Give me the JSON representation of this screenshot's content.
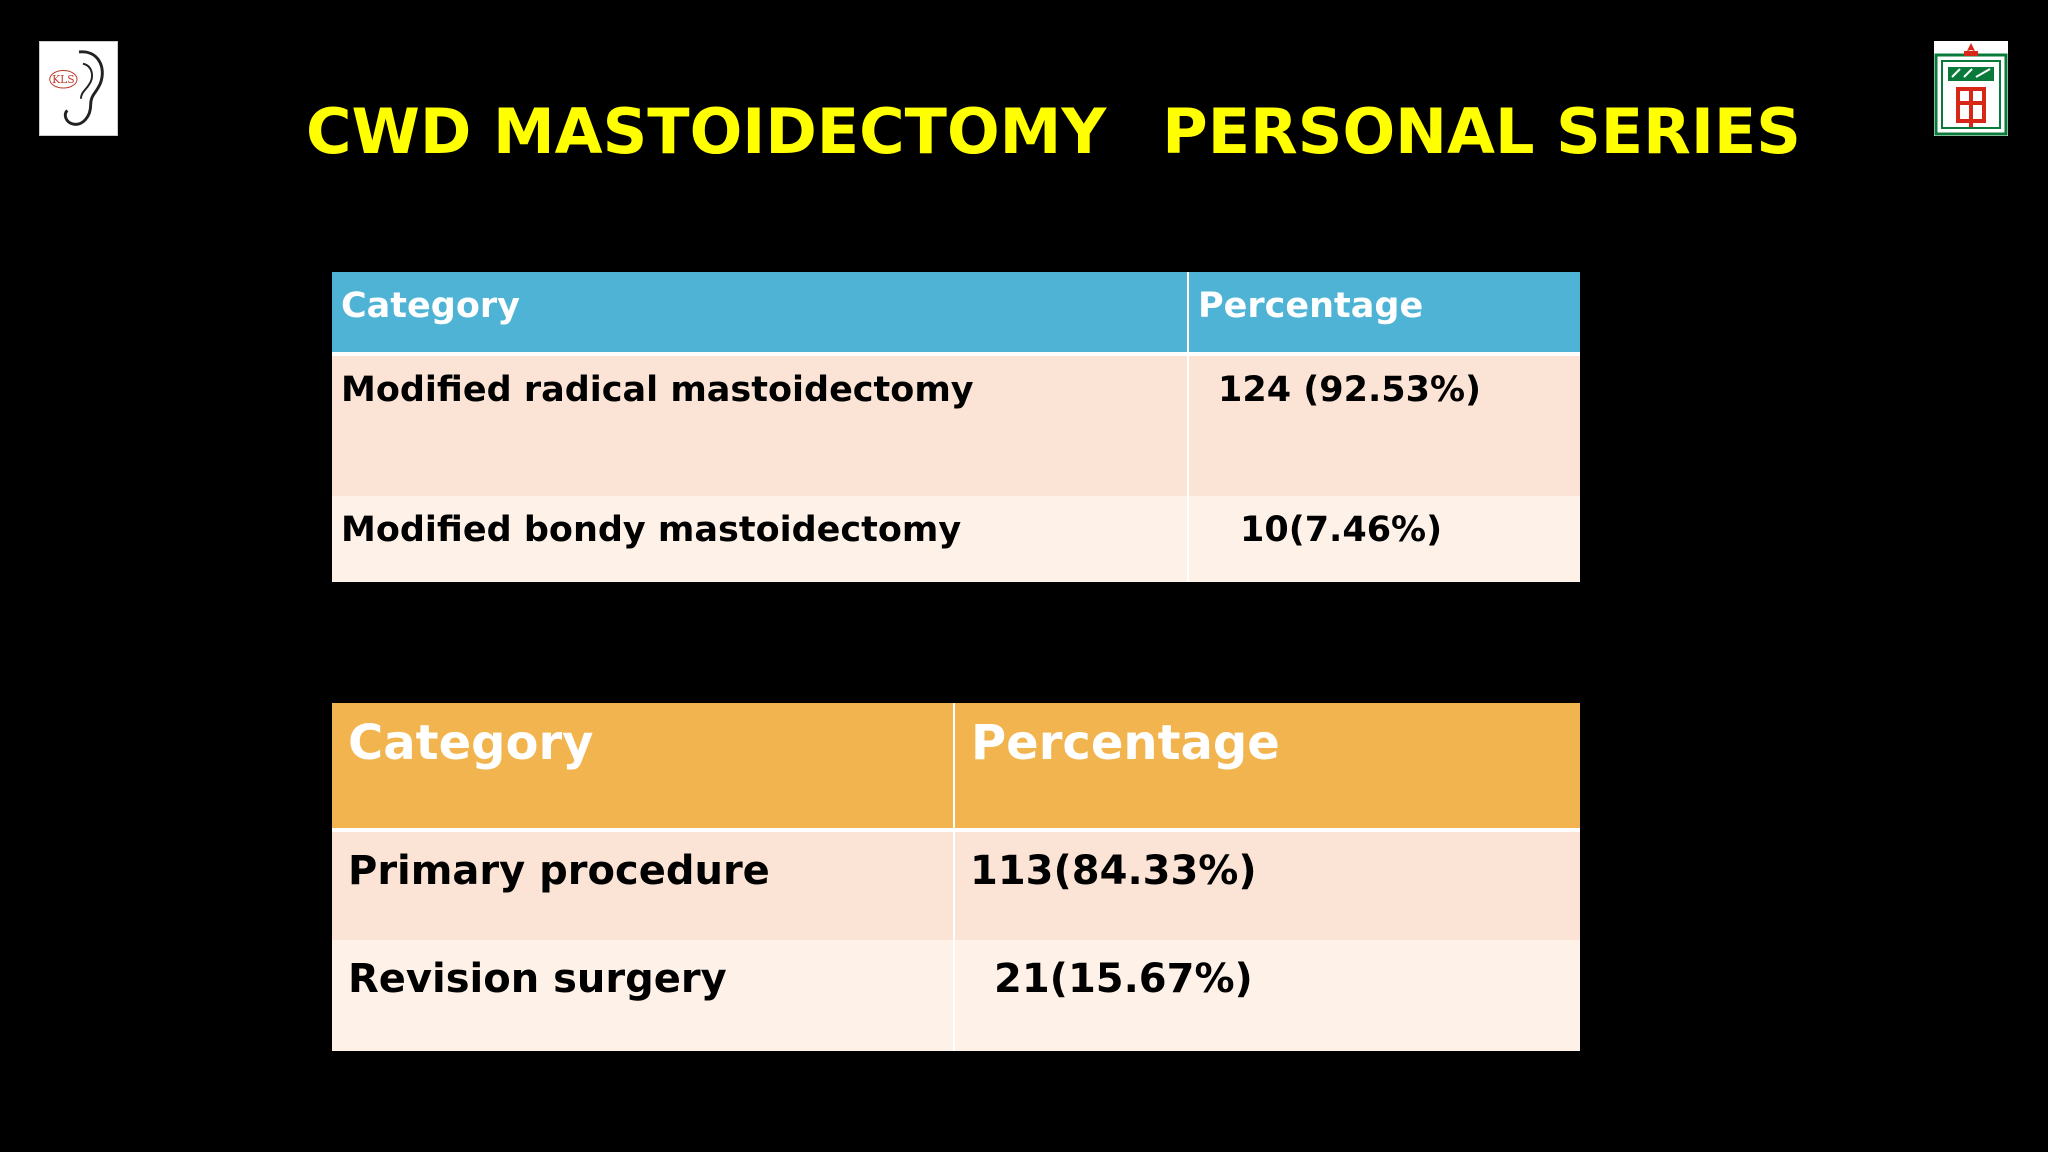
{
  "logos": {
    "left": {
      "text": "KLS",
      "icon": "ear-logo-icon"
    },
    "right": {
      "icon": "hospital-crest-icon"
    }
  },
  "title": {
    "part1": "CWD MASTOIDECTOMY",
    "part2": "PERSONAL SERIES"
  },
  "table1": {
    "headers": [
      "Category",
      "Percentage"
    ],
    "rows": [
      {
        "category": "Modified radical mastoidectomy",
        "value": "124 (92.53%)"
      },
      {
        "category": "Modified bondy mastoidectomy",
        "value": "10(7.46%)"
      }
    ],
    "header_color": "#4eb3d4"
  },
  "table2": {
    "headers": [
      "Category",
      "Percentage"
    ],
    "rows": [
      {
        "category": "Primary procedure",
        "value": "113(84.33%)"
      },
      {
        "category": "Revision surgery",
        "value": "21(15.67%)"
      }
    ],
    "header_color": "#f2b44e"
  },
  "colors": {
    "background": "#000000",
    "title": "#ffff00",
    "row_odd": "#fbe4d5",
    "row_even": "#fdf1e8"
  }
}
